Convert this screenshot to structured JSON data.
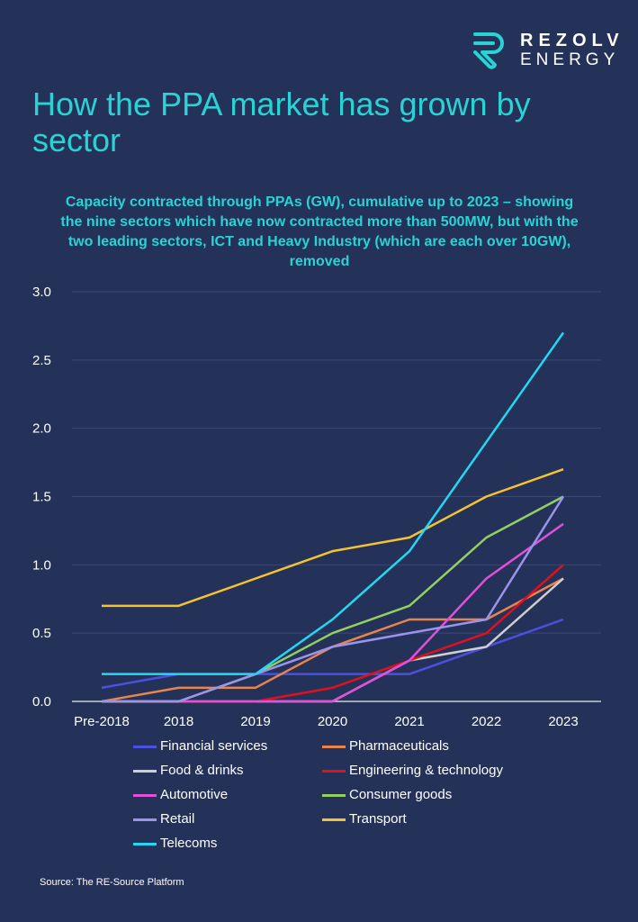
{
  "brand": {
    "line1": "REZOLV",
    "line2": "ENERGY",
    "accent": "#2ad3d3"
  },
  "title": "How the PPA market has grown by sector",
  "subtitle": "Capacity contracted through PPAs (GW), cumulative up to 2023 – showing the nine sectors which have now contracted more than 500MW, but with the two leading sectors, ICT and Heavy Industry (which are each over 10GW), removed",
  "source": "Source: The RE-Source Platform",
  "chart_data": {
    "type": "line",
    "categories": [
      "Pre-2018",
      "2018",
      "2019",
      "2020",
      "2021",
      "2022",
      "2023"
    ],
    "ylim": [
      0,
      3.0
    ],
    "yticks": [
      "0.0",
      "0.5",
      "1.0",
      "1.5",
      "2.0",
      "2.5",
      "3.0"
    ],
    "grid": true,
    "legend_placement": "bottom",
    "series": [
      {
        "name": "Financial services",
        "color": "#4a50e0",
        "values": [
          0.1,
          0.2,
          0.2,
          0.2,
          0.2,
          0.4,
          0.6
        ]
      },
      {
        "name": "Pharmaceuticals",
        "color": "#e8844e",
        "values": [
          0,
          0.1,
          0.1,
          0.4,
          0.6,
          0.6,
          0.9
        ]
      },
      {
        "name": "Food & drinks",
        "color": "#cfcfcf",
        "values": [
          0,
          0,
          0,
          0,
          0.3,
          0.4,
          0.9
        ]
      },
      {
        "name": "Engineering & technology",
        "color": "#e0101e",
        "values": [
          0,
          0,
          0,
          0.1,
          0.3,
          0.5,
          1.0
        ]
      },
      {
        "name": "Automotive",
        "color": "#e050d8",
        "values": [
          0,
          0,
          0,
          0,
          0.3,
          0.9,
          1.3
        ]
      },
      {
        "name": "Consumer goods",
        "color": "#92d060",
        "values": [
          0,
          0,
          0.2,
          0.5,
          0.7,
          1.2,
          1.5
        ]
      },
      {
        "name": "Retail",
        "color": "#9c94ea",
        "values": [
          0,
          0,
          0.2,
          0.4,
          0.5,
          0.6,
          1.5
        ]
      },
      {
        "name": "Transport",
        "color": "#f5c232",
        "values": [
          0.7,
          0.7,
          0.9,
          1.1,
          1.2,
          1.5,
          1.7
        ]
      },
      {
        "name": "Telecoms",
        "color": "#22d8f2",
        "values": [
          0.2,
          0.2,
          0.2,
          0.6,
          1.1,
          1.9,
          2.7
        ]
      }
    ]
  }
}
